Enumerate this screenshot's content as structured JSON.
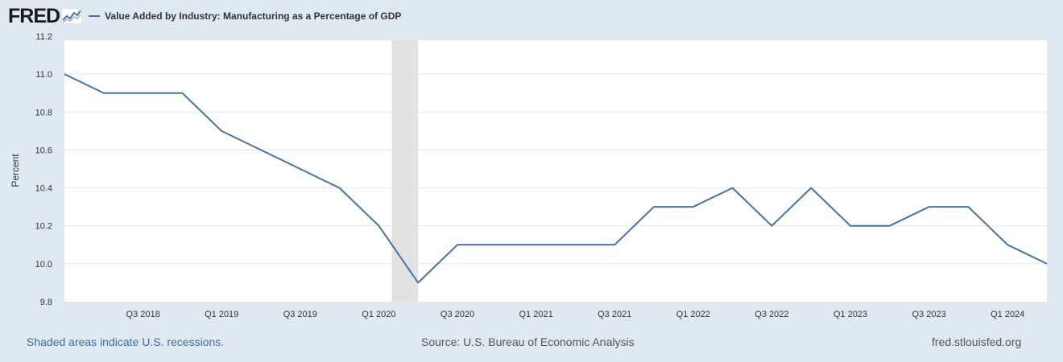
{
  "header": {
    "logo_text": "FRED",
    "legend_label": "Value Added by Industry: Manufacturing as a Percentage of GDP"
  },
  "colors": {
    "series": "#4572a7",
    "recession": "#e2e2e2",
    "grid": "#e6e6e6",
    "background": "#e1e9f0",
    "plot": "#ffffff"
  },
  "footer": {
    "recessions_note": "Shaded areas indicate U.S. recessions.",
    "source": "Source: U.S. Bureau of Economic Analysis",
    "site": "fred.stlouisfed.org"
  },
  "chart_data": {
    "type": "line",
    "title": "Value Added by Industry: Manufacturing as a Percentage of GDP",
    "ylabel": "Percent",
    "xlabel": "",
    "ylim": [
      9.8,
      11.2
    ],
    "xlim": [
      0,
      25
    ],
    "yticks": [
      "9.8",
      "10.0",
      "10.2",
      "10.4",
      "10.6",
      "10.8",
      "11.0",
      "11.2"
    ],
    "ytick_values": [
      9.8,
      10.0,
      10.2,
      10.4,
      10.6,
      10.8,
      11.0,
      11.2
    ],
    "xticks": [
      {
        "label": "Q3 2018",
        "x": 2
      },
      {
        "label": "Q1 2019",
        "x": 4
      },
      {
        "label": "Q3 2019",
        "x": 6
      },
      {
        "label": "Q1 2020",
        "x": 8
      },
      {
        "label": "Q3 2020",
        "x": 10
      },
      {
        "label": "Q1 2021",
        "x": 12
      },
      {
        "label": "Q3 2021",
        "x": 14
      },
      {
        "label": "Q1 2022",
        "x": 16
      },
      {
        "label": "Q3 2022",
        "x": 18
      },
      {
        "label": "Q1 2023",
        "x": 20
      },
      {
        "label": "Q3 2023",
        "x": 22
      },
      {
        "label": "Q1 2024",
        "x": 24
      }
    ],
    "recession": {
      "start": 8.33,
      "end": 9.0
    },
    "series": [
      {
        "name": "Value Added by Industry: Manufacturing as a Percentage of GDP",
        "x": [
          0,
          1,
          2,
          3,
          4,
          5,
          6,
          7,
          8,
          9,
          10,
          11,
          12,
          13,
          14,
          15,
          16,
          17,
          18,
          19,
          20,
          21,
          22,
          23,
          24,
          25
        ],
        "values": [
          11.0,
          10.9,
          10.9,
          10.9,
          10.7,
          10.6,
          10.5,
          10.4,
          10.2,
          9.9,
          10.1,
          10.1,
          10.1,
          10.1,
          10.1,
          10.3,
          10.3,
          10.4,
          10.2,
          10.4,
          10.2,
          10.2,
          10.3,
          10.3,
          10.1,
          10.0
        ]
      }
    ],
    "grid": true
  }
}
